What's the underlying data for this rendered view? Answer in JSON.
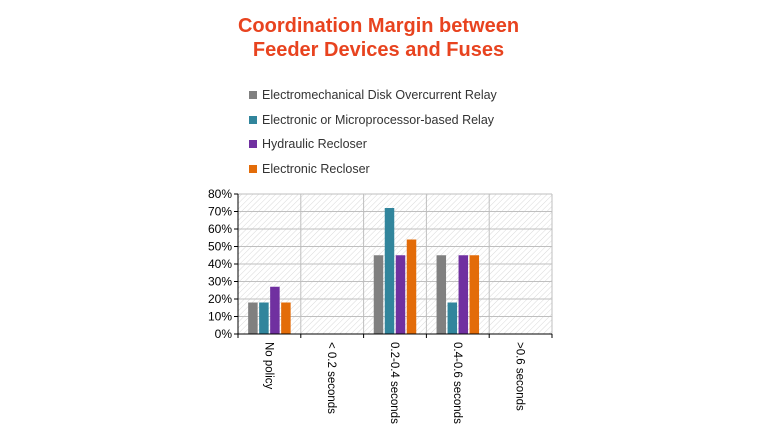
{
  "chart_data": {
    "type": "bar",
    "title": [
      "Coordination Margin between",
      "Feeder Devices and Fuses"
    ],
    "categories": [
      "No policy",
      "< 0.2 seconds",
      "0.2-0.4 seconds",
      "0.4-0.6 seconds",
      ">0.6 seconds"
    ],
    "series": [
      {
        "name": "Electromechanical Disk Overcurrent Relay",
        "color": "#808080",
        "values": [
          18,
          0,
          45,
          45,
          0
        ]
      },
      {
        "name": "Electronic or Microprocessor-based Relay",
        "color": "#31859c",
        "values": [
          18,
          0,
          72,
          18,
          0
        ]
      },
      {
        "name": "Hydraulic Recloser",
        "color": "#7030a0",
        "values": [
          27,
          0,
          45,
          45,
          0
        ]
      },
      {
        "name": "Electronic Recloser",
        "color": "#e36c09",
        "values": [
          18,
          0,
          54,
          45,
          0
        ]
      }
    ],
    "yticks": [
      "0%",
      "10%",
      "20%",
      "30%",
      "40%",
      "50%",
      "60%",
      "70%",
      "80%"
    ],
    "ylim": [
      0,
      80
    ],
    "grid": true,
    "legend_position": "top"
  },
  "colors": {
    "title": "#e8431f"
  }
}
